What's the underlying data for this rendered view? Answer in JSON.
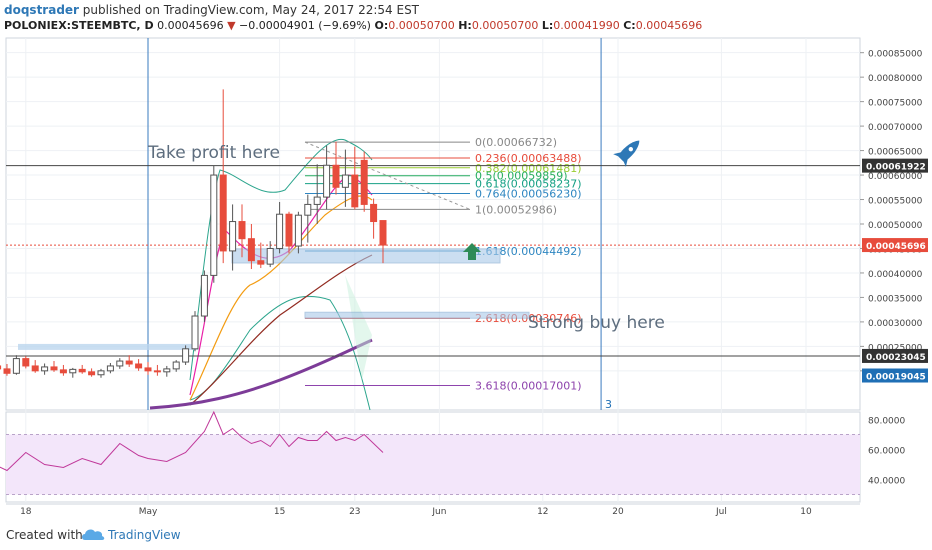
{
  "header": {
    "author": "doqstrader",
    "published": "published on TradingView.com, May 24, 2017 22:54 EST",
    "symbol": "POLONIEX:STEEMBTC, D",
    "price": "0.00045696",
    "change": "−0.00004901 (−9.69%)",
    "o_label": "O:",
    "o_val": "0.00050700",
    "h_label": "H:",
    "h_val": "0.00050700",
    "l_label": "L:",
    "l_val": "0.00041990",
    "c_label": "C:",
    "c_val": "0.00045696"
  },
  "footer": {
    "created": "Created with",
    "brand": "TradingView"
  },
  "annotations": {
    "take_profit": "Take profit here",
    "strong_buy": "Strong buy here",
    "marker_3": "3"
  },
  "chart_data": {
    "type": "candlestick",
    "y_axis": {
      "min": 0.00012,
      "max": 0.00088,
      "ticks": [
        "0.00085000",
        "0.00080000",
        "0.00075000",
        "0.00070000",
        "0.00065000",
        "0.00060000",
        "0.00055000",
        "0.00050000",
        "0.00045000",
        "0.00040000",
        "0.00035000",
        "0.00030000",
        "0.00025000",
        "0.00020000"
      ],
      "tick_values": [
        0.00085,
        0.0008,
        0.00075,
        0.0007,
        0.00065,
        0.0006,
        0.00055,
        0.0005,
        0.00045,
        0.0004,
        0.00035,
        0.0003,
        0.00025,
        0.0002
      ]
    },
    "price_tags": [
      {
        "label": "0.00061922",
        "value": 0.00061922,
        "color": "#333333"
      },
      {
        "label": "0.00045696",
        "value": 0.00045696,
        "color": "#e74c3c"
      },
      {
        "label": "0.00019045",
        "value": 0.00019045,
        "color": "#1f6fb5"
      },
      {
        "label": "0.00023045",
        "value": 0.00023045,
        "color": "#333333"
      }
    ],
    "x_axis": {
      "labels": [
        {
          "text": "18",
          "day": -13
        },
        {
          "text": "May",
          "day": 0
        },
        {
          "text": "15",
          "day": 14
        },
        {
          "text": "23",
          "day": 22
        },
        {
          "text": "Jun",
          "day": 31
        },
        {
          "text": "12",
          "day": 42
        },
        {
          "text": "20",
          "day": 50
        },
        {
          "text": "Jul",
          "day": 61
        },
        {
          "text": "10",
          "day": 70
        }
      ]
    },
    "fib_levels": [
      {
        "label": "0(0.00066732)",
        "value": 0.00066732,
        "color": "#888888"
      },
      {
        "label": "0.236(0.00063488)",
        "value": 0.00063488,
        "color": "#e74c3c"
      },
      {
        "label": "0.382(0.00061481)",
        "value": 0.00061481,
        "color": "#9acd32"
      },
      {
        "label": "0.5(0.00059859)",
        "value": 0.00059859,
        "color": "#27ae60"
      },
      {
        "label": "0.618(0.00058237)",
        "value": 0.00058237,
        "color": "#16a085"
      },
      {
        "label": "0.764(0.00056230)",
        "value": 0.0005623,
        "color": "#2e86c1"
      },
      {
        "label": "1(0.00052986)",
        "value": 0.00052986,
        "color": "#888888"
      },
      {
        "label": "1.618(0.00044492)",
        "value": 0.00044492,
        "color": "#2e86c1"
      },
      {
        "label": "2.618(0.00030746)",
        "value": 0.00030746,
        "color": "#e74c3c"
      },
      {
        "label": "3.618(0.00017001)",
        "value": 0.00017001,
        "color": "#8e44ad"
      }
    ],
    "candles": [
      {
        "day": -17,
        "o": 0.000198,
        "h": 0.000218,
        "l": 0.000186,
        "c": 0.00021
      },
      {
        "day": -16,
        "o": 0.00021,
        "h": 0.000225,
        "l": 0.000196,
        "c": 0.000204
      },
      {
        "day": -15,
        "o": 0.000204,
        "h": 0.000214,
        "l": 0.00019,
        "c": 0.000195
      },
      {
        "day": -14,
        "o": 0.000195,
        "h": 0.000232,
        "l": 0.000192,
        "c": 0.000225
      },
      {
        "day": -13,
        "o": 0.000225,
        "h": 0.00023,
        "l": 0.000205,
        "c": 0.00021
      },
      {
        "day": -12,
        "o": 0.00021,
        "h": 0.000222,
        "l": 0.000196,
        "c": 0.0002
      },
      {
        "day": -11,
        "o": 0.0002,
        "h": 0.000215,
        "l": 0.000192,
        "c": 0.000208
      },
      {
        "day": -10,
        "o": 0.000208,
        "h": 0.00022,
        "l": 0.000198,
        "c": 0.000202
      },
      {
        "day": -9,
        "o": 0.000202,
        "h": 0.000212,
        "l": 0.00019,
        "c": 0.000196
      },
      {
        "day": -8,
        "o": 0.000196,
        "h": 0.000206,
        "l": 0.000186,
        "c": 0.000203
      },
      {
        "day": -7,
        "o": 0.000203,
        "h": 0.000212,
        "l": 0.000194,
        "c": 0.000198
      },
      {
        "day": -6,
        "o": 0.000198,
        "h": 0.000205,
        "l": 0.000188,
        "c": 0.000192
      },
      {
        "day": -5,
        "o": 0.000192,
        "h": 0.000204,
        "l": 0.000186,
        "c": 0.0002
      },
      {
        "day": -4,
        "o": 0.0002,
        "h": 0.000216,
        "l": 0.000195,
        "c": 0.00021
      },
      {
        "day": -3,
        "o": 0.00021,
        "h": 0.000226,
        "l": 0.000204,
        "c": 0.00022
      },
      {
        "day": -2,
        "o": 0.00022,
        "h": 0.000232,
        "l": 0.000208,
        "c": 0.000214
      },
      {
        "day": -1,
        "o": 0.000214,
        "h": 0.000224,
        "l": 0.0002,
        "c": 0.000206
      },
      {
        "day": 0,
        "o": 0.000206,
        "h": 0.000218,
        "l": 0.000192,
        "c": 0.0002
      },
      {
        "day": 1,
        "o": 0.0002,
        "h": 0.000212,
        "l": 0.00019,
        "c": 0.000198
      },
      {
        "day": 2,
        "o": 0.000198,
        "h": 0.00021,
        "l": 0.000188,
        "c": 0.000204
      },
      {
        "day": 3,
        "o": 0.000204,
        "h": 0.000222,
        "l": 0.000198,
        "c": 0.000218
      },
      {
        "day": 4,
        "o": 0.000218,
        "h": 0.000252,
        "l": 0.000212,
        "c": 0.000245
      },
      {
        "day": 5,
        "o": 0.000245,
        "h": 0.000322,
        "l": 0.00024,
        "c": 0.000312
      },
      {
        "day": 6,
        "o": 0.000312,
        "h": 0.000405,
        "l": 0.0003,
        "c": 0.000395
      },
      {
        "day": 7,
        "o": 0.000395,
        "h": 0.00062,
        "l": 0.00038,
        "c": 0.0006
      },
      {
        "day": 8,
        "o": 0.0006,
        "h": 0.000775,
        "l": 0.00042,
        "c": 0.000445
      },
      {
        "day": 9,
        "o": 0.000445,
        "h": 0.00054,
        "l": 0.000405,
        "c": 0.000505
      },
      {
        "day": 10,
        "o": 0.000505,
        "h": 0.00054,
        "l": 0.000432,
        "c": 0.00047
      },
      {
        "day": 11,
        "o": 0.00047,
        "h": 0.0005,
        "l": 0.000408,
        "c": 0.000425
      },
      {
        "day": 12,
        "o": 0.000425,
        "h": 0.000462,
        "l": 0.00041,
        "c": 0.000418
      },
      {
        "day": 13,
        "o": 0.000418,
        "h": 0.000465,
        "l": 0.000412,
        "c": 0.00045
      },
      {
        "day": 14,
        "o": 0.00045,
        "h": 0.000545,
        "l": 0.00044,
        "c": 0.00052
      },
      {
        "day": 15,
        "o": 0.00052,
        "h": 0.000525,
        "l": 0.00044,
        "c": 0.000455
      },
      {
        "day": 16,
        "o": 0.000455,
        "h": 0.000525,
        "l": 0.00044,
        "c": 0.000518
      },
      {
        "day": 17,
        "o": 0.000518,
        "h": 0.00056,
        "l": 0.000462,
        "c": 0.00054
      },
      {
        "day": 18,
        "o": 0.00054,
        "h": 0.000622,
        "l": 0.0005,
        "c": 0.000555
      },
      {
        "day": 19,
        "o": 0.000555,
        "h": 0.00066,
        "l": 0.00053,
        "c": 0.00062
      },
      {
        "day": 20,
        "o": 0.00062,
        "h": 0.000668,
        "l": 0.00056,
        "c": 0.000575
      },
      {
        "day": 21,
        "o": 0.000575,
        "h": 0.000652,
        "l": 0.000535,
        "c": 0.0006
      },
      {
        "day": 22,
        "o": 0.0006,
        "h": 0.000658,
        "l": 0.00053,
        "c": 0.000535
      },
      {
        "day": 23,
        "o": 0.00063,
        "h": 0.000648,
        "l": 0.000525,
        "c": 0.00054
      },
      {
        "day": 24,
        "o": 0.00054,
        "h": 0.000552,
        "l": 0.00047,
        "c": 0.000505
      },
      {
        "day": 25,
        "o": 0.000507,
        "h": 0.000507,
        "l": 0.00042,
        "c": 0.000457
      }
    ],
    "rsi": {
      "ticks": [
        "80.0000",
        "60.0000",
        "40.0000"
      ],
      "tick_values": [
        80,
        60,
        40
      ],
      "min": 25,
      "max": 85,
      "band": [
        30,
        70
      ],
      "values": [
        {
          "day": -17,
          "v": 52
        },
        {
          "day": -15,
          "v": 46
        },
        {
          "day": -13,
          "v": 58
        },
        {
          "day": -11,
          "v": 50
        },
        {
          "day": -9,
          "v": 48
        },
        {
          "day": -7,
          "v": 54
        },
        {
          "day": -5,
          "v": 50
        },
        {
          "day": -3,
          "v": 64
        },
        {
          "day": -1,
          "v": 56
        },
        {
          "day": 0,
          "v": 54
        },
        {
          "day": 2,
          "v": 52
        },
        {
          "day": 4,
          "v": 58
        },
        {
          "day": 6,
          "v": 72
        },
        {
          "day": 7,
          "v": 86
        },
        {
          "day": 8,
          "v": 70
        },
        {
          "day": 9,
          "v": 74
        },
        {
          "day": 10,
          "v": 68
        },
        {
          "day": 11,
          "v": 64
        },
        {
          "day": 12,
          "v": 66
        },
        {
          "day": 13,
          "v": 62
        },
        {
          "day": 14,
          "v": 70
        },
        {
          "day": 15,
          "v": 62
        },
        {
          "day": 16,
          "v": 68
        },
        {
          "day": 17,
          "v": 66
        },
        {
          "day": 18,
          "v": 66
        },
        {
          "day": 19,
          "v": 72
        },
        {
          "day": 20,
          "v": 66
        },
        {
          "day": 21,
          "v": 68
        },
        {
          "day": 22,
          "v": 66
        },
        {
          "day": 23,
          "v": 70
        },
        {
          "day": 24,
          "v": 64
        },
        {
          "day": 25,
          "v": 58
        }
      ]
    },
    "colors": {
      "up": "#2ecc71",
      "down": "#e74c3c",
      "ma_slow": "#7d3c98",
      "vertical": "#3a7bbf"
    }
  }
}
